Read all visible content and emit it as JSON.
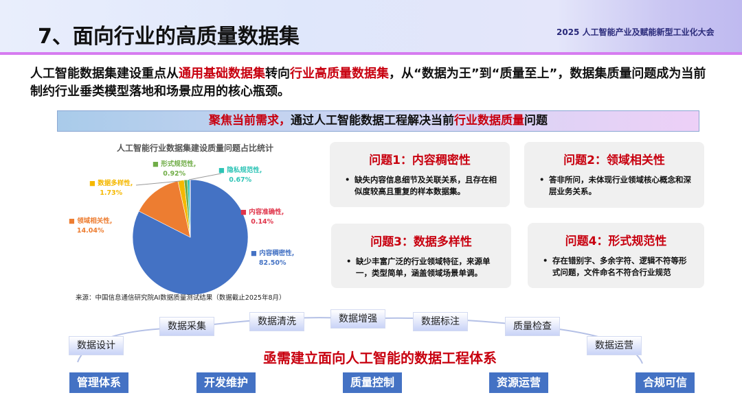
{
  "header": {
    "title": "7、面向行业的高质量数据集",
    "conference": "2025 人工智能产业及赋能新型工业化大会"
  },
  "intro": {
    "p1": "人工智能数据集建设重点从",
    "h1": "通用基础数据集",
    "p2": "转向",
    "h2": "行业高质量数据集",
    "p3": "，从“数据为王”到“质量至上”，数据集质量问题成为当前制约行业垂类模型落地和场景应用的核心瓶颈。"
  },
  "banner": {
    "h1": "聚焦当前需求，",
    "p1": "通过人工智能数据工程解决当前",
    "h2": "行业数据质量",
    "p2": "问题"
  },
  "chart_data": {
    "type": "pie",
    "title": "人工智能行业数据集建设质量问题占比统计",
    "slices": [
      {
        "name": "内容稠密性",
        "value": 82.5,
        "label": "82.50%",
        "color": "#4472c4"
      },
      {
        "name": "领域相关性",
        "value": 14.04,
        "label": "14.04%",
        "color": "#ed7d31"
      },
      {
        "name": "数据多样性",
        "value": 1.73,
        "label": "1.73%",
        "color": "#f5b800"
      },
      {
        "name": "形式规范性",
        "value": 0.92,
        "label": "0.92%",
        "color": "#70ad47"
      },
      {
        "name": "隐私规范性",
        "value": 0.67,
        "label": "0.67%",
        "color": "#2ec4b6"
      },
      {
        "name": "内容准确性",
        "value": 0.14,
        "label": "0.14%",
        "color": "#e0344a"
      }
    ],
    "source": "来源：中国信息通信研究院AI数据质量测试结果（数据截止2025年8月）"
  },
  "problems": [
    {
      "title": "问题1：内容稠密性",
      "text": "缺失内容信息细节及关联关系，且存在相似度较高且重复的样本数据集。"
    },
    {
      "title": "问题2：领域相关性",
      "text": "答非所问，未体现行业领域核心概念和深层业务关系。"
    },
    {
      "title": "问题3：数据多样性",
      "text": "缺少丰富广泛的行业领域特征，来源单一，类型简单，涵盖领域场景单调。"
    },
    {
      "title": "问题4：形式规范性",
      "text": "存在错别字、多余字符、逻辑不符等形式问题，文件命名不符合行业规范"
    }
  ],
  "steps": [
    "数据设计",
    "数据采集",
    "数据清洗",
    "数据增强",
    "数据标注",
    "质量检查",
    "数据运营"
  ],
  "core": "亟需建立面向人工智能的数据工程体系",
  "pillars": [
    "管理体系",
    "开发维护",
    "质量控制",
    "资源运营",
    "合规可信"
  ]
}
